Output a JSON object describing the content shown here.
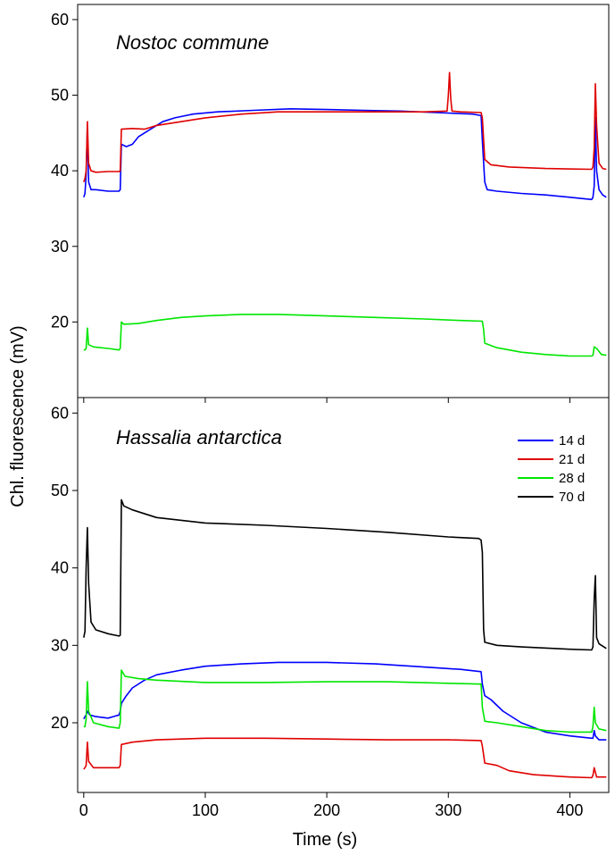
{
  "chart_data": [
    {
      "type": "line",
      "title": "Nostoc commune",
      "xlabel": "Time (s)",
      "ylabel": "Chl. fluorescence (mV)",
      "xlim": [
        -5,
        432
      ],
      "ylim": [
        10,
        62
      ],
      "x_ticks": [
        0,
        100,
        200,
        300,
        400
      ],
      "y_ticks": [
        20,
        30,
        40,
        50,
        60
      ],
      "legend": false,
      "series": [
        {
          "name": "14 d",
          "color": "#0000ff",
          "points": [
            [
              0,
              36.5
            ],
            [
              1,
              37
            ],
            [
              2,
              39.5
            ],
            [
              3,
              45.5
            ],
            [
              4,
              38.5
            ],
            [
              6,
              37.5
            ],
            [
              10,
              37.5
            ],
            [
              20,
              37.3
            ],
            [
              29,
              37.3
            ],
            [
              30,
              37.5
            ],
            [
              31,
              43.5
            ],
            [
              35,
              43.2
            ],
            [
              40,
              43.5
            ],
            [
              45,
              44.5
            ],
            [
              55,
              45.5
            ],
            [
              65,
              46.5
            ],
            [
              75,
              47
            ],
            [
              90,
              47.5
            ],
            [
              110,
              47.8
            ],
            [
              140,
              48
            ],
            [
              170,
              48.2
            ],
            [
              200,
              48.1
            ],
            [
              230,
              48
            ],
            [
              260,
              47.9
            ],
            [
              290,
              47.7
            ],
            [
              320,
              47.5
            ],
            [
              327,
              47.3
            ],
            [
              328,
              44
            ],
            [
              330,
              38.5
            ],
            [
              332,
              37.5
            ],
            [
              340,
              37.3
            ],
            [
              360,
              37
            ],
            [
              380,
              36.8
            ],
            [
              400,
              36.5
            ],
            [
              418,
              36.2
            ],
            [
              419,
              36.5
            ],
            [
              420,
              38
            ],
            [
              421,
              47
            ],
            [
              422,
              40
            ],
            [
              424,
              37.5
            ],
            [
              427,
              36.8
            ],
            [
              430,
              36.5
            ]
          ]
        },
        {
          "name": "21 d",
          "color": "#e00000",
          "points": [
            [
              0,
              38.5
            ],
            [
              1,
              39
            ],
            [
              2,
              40
            ],
            [
              3,
              46.5
            ],
            [
              4,
              41
            ],
            [
              6,
              40
            ],
            [
              10,
              39.8
            ],
            [
              20,
              39.9
            ],
            [
              29,
              39.9
            ],
            [
              30,
              40
            ],
            [
              31,
              45.5
            ],
            [
              40,
              45.6
            ],
            [
              50,
              45.5
            ],
            [
              60,
              46
            ],
            [
              80,
              46.5
            ],
            [
              100,
              47
            ],
            [
              130,
              47.5
            ],
            [
              160,
              47.8
            ],
            [
              200,
              47.8
            ],
            [
              240,
              47.8
            ],
            [
              280,
              47.8
            ],
            [
              299,
              47.9
            ],
            [
              300,
              50
            ],
            [
              301,
              53
            ],
            [
              302,
              49.5
            ],
            [
              303,
              47.9
            ],
            [
              310,
              47.8
            ],
            [
              327,
              47.7
            ],
            [
              328,
              47
            ],
            [
              330,
              41.5
            ],
            [
              335,
              40.8
            ],
            [
              350,
              40.5
            ],
            [
              380,
              40.3
            ],
            [
              418,
              40.2
            ],
            [
              419,
              40.5
            ],
            [
              420,
              43
            ],
            [
              421,
              51.5
            ],
            [
              422,
              46
            ],
            [
              424,
              41
            ],
            [
              427,
              40.3
            ],
            [
              430,
              40.2
            ]
          ]
        },
        {
          "name": "28 d",
          "color": "#00e600",
          "points": [
            [
              0,
              16.3
            ],
            [
              1,
              16.3
            ],
            [
              2,
              16.5
            ],
            [
              3,
              19.2
            ],
            [
              4,
              17
            ],
            [
              8,
              16.7
            ],
            [
              20,
              16.5
            ],
            [
              29,
              16.3
            ],
            [
              30,
              16.5
            ],
            [
              31,
              20
            ],
            [
              33,
              19.7
            ],
            [
              45,
              19.8
            ],
            [
              60,
              20.2
            ],
            [
              80,
              20.6
            ],
            [
              100,
              20.8
            ],
            [
              130,
              21
            ],
            [
              160,
              21
            ],
            [
              200,
              20.8
            ],
            [
              240,
              20.6
            ],
            [
              280,
              20.4
            ],
            [
              310,
              20.2
            ],
            [
              328,
              20.1
            ],
            [
              329,
              19
            ],
            [
              330,
              17.2
            ],
            [
              340,
              16.6
            ],
            [
              360,
              16
            ],
            [
              380,
              15.7
            ],
            [
              400,
              15.5
            ],
            [
              418,
              15.5
            ],
            [
              419,
              15.6
            ],
            [
              420,
              16.7
            ],
            [
              422,
              16.5
            ],
            [
              426,
              15.7
            ],
            [
              430,
              15.6
            ]
          ]
        }
      ]
    },
    {
      "type": "line",
      "title": "Hassalia antarctica",
      "xlabel": "Time (s)",
      "ylabel": "Chl. fluorescence (mV)",
      "xlim": [
        -5,
        432
      ],
      "ylim": [
        11,
        62
      ],
      "x_ticks": [
        0,
        100,
        200,
        300,
        400
      ],
      "y_ticks": [
        20,
        30,
        40,
        50,
        60
      ],
      "legend": "top-right",
      "series": [
        {
          "name": "14 d",
          "color": "#0000ff",
          "points": [
            [
              0,
              20.5
            ],
            [
              1,
              20.8
            ],
            [
              2,
              21
            ],
            [
              3,
              21.5
            ],
            [
              5,
              21
            ],
            [
              10,
              20.8
            ],
            [
              20,
              20.6
            ],
            [
              29,
              21
            ],
            [
              30,
              21.5
            ],
            [
              31,
              22.5
            ],
            [
              35,
              23.5
            ],
            [
              40,
              24.5
            ],
            [
              50,
              25.5
            ],
            [
              60,
              26.2
            ],
            [
              80,
              26.8
            ],
            [
              100,
              27.3
            ],
            [
              130,
              27.6
            ],
            [
              160,
              27.8
            ],
            [
              200,
              27.8
            ],
            [
              240,
              27.6
            ],
            [
              280,
              27.2
            ],
            [
              310,
              26.9
            ],
            [
              327,
              26.6
            ],
            [
              328,
              25
            ],
            [
              330,
              23.5
            ],
            [
              335,
              23
            ],
            [
              345,
              21.5
            ],
            [
              360,
              20
            ],
            [
              380,
              18.8
            ],
            [
              400,
              18.3
            ],
            [
              418,
              18
            ],
            [
              419,
              18
            ],
            [
              420,
              19
            ],
            [
              421,
              18.3
            ],
            [
              424,
              17.8
            ],
            [
              430,
              17.8
            ]
          ]
        },
        {
          "name": "21 d",
          "color": "#e00000",
          "points": [
            [
              0,
              14
            ],
            [
              1,
              14.2
            ],
            [
              2,
              14.5
            ],
            [
              3,
              17.5
            ],
            [
              4,
              15
            ],
            [
              8,
              14.2
            ],
            [
              20,
              14.2
            ],
            [
              29,
              14.2
            ],
            [
              30,
              14.5
            ],
            [
              31,
              17.2
            ],
            [
              40,
              17.5
            ],
            [
              60,
              17.8
            ],
            [
              100,
              18
            ],
            [
              150,
              18
            ],
            [
              200,
              17.9
            ],
            [
              250,
              17.8
            ],
            [
              300,
              17.8
            ],
            [
              327,
              17.7
            ],
            [
              328,
              17
            ],
            [
              330,
              14.8
            ],
            [
              340,
              14.5
            ],
            [
              350,
              13.8
            ],
            [
              370,
              13.3
            ],
            [
              400,
              13
            ],
            [
              418,
              12.9
            ],
            [
              419,
              13.2
            ],
            [
              420,
              14.2
            ],
            [
              422,
              13
            ],
            [
              430,
              13
            ]
          ]
        },
        {
          "name": "28 d",
          "color": "#00e600",
          "points": [
            [
              0,
              19.5
            ],
            [
              1,
              19.5
            ],
            [
              2,
              20.5
            ],
            [
              3,
              25.3
            ],
            [
              4,
              21.5
            ],
            [
              8,
              20
            ],
            [
              20,
              19.5
            ],
            [
              29,
              19.3
            ],
            [
              30,
              20
            ],
            [
              31,
              26.8
            ],
            [
              34,
              26
            ],
            [
              45,
              25.7
            ],
            [
              60,
              25.5
            ],
            [
              100,
              25.2
            ],
            [
              150,
              25.2
            ],
            [
              200,
              25.3
            ],
            [
              250,
              25.3
            ],
            [
              300,
              25.1
            ],
            [
              327,
              25
            ],
            [
              328,
              22
            ],
            [
              330,
              20.2
            ],
            [
              340,
              20
            ],
            [
              360,
              19.5
            ],
            [
              380,
              19
            ],
            [
              400,
              18.8
            ],
            [
              418,
              18.8
            ],
            [
              419,
              19.5
            ],
            [
              420,
              22
            ],
            [
              421,
              20
            ],
            [
              424,
              19.2
            ],
            [
              430,
              19
            ]
          ]
        },
        {
          "name": "70 d",
          "color": "#000000",
          "points": [
            [
              0,
              31
            ],
            [
              1,
              31.8
            ],
            [
              2,
              40
            ],
            [
              3,
              45.2
            ],
            [
              4,
              38
            ],
            [
              6,
              33
            ],
            [
              10,
              32
            ],
            [
              20,
              31.5
            ],
            [
              29,
              31.2
            ],
            [
              30,
              31.3
            ],
            [
              31,
              48.8
            ],
            [
              33,
              48
            ],
            [
              40,
              47.5
            ],
            [
              60,
              46.5
            ],
            [
              100,
              45.8
            ],
            [
              150,
              45.5
            ],
            [
              200,
              45.1
            ],
            [
              250,
              44.6
            ],
            [
              300,
              44
            ],
            [
              325,
              43.8
            ],
            [
              327,
              43.6
            ],
            [
              328,
              42
            ],
            [
              329,
              32
            ],
            [
              330,
              30.4
            ],
            [
              340,
              30
            ],
            [
              360,
              29.8
            ],
            [
              400,
              29.5
            ],
            [
              418,
              29.4
            ],
            [
              419,
              29.8
            ],
            [
              420,
              36
            ],
            [
              421,
              39
            ],
            [
              422,
              31
            ],
            [
              424,
              30.2
            ],
            [
              430,
              29.6
            ]
          ]
        }
      ]
    }
  ]
}
